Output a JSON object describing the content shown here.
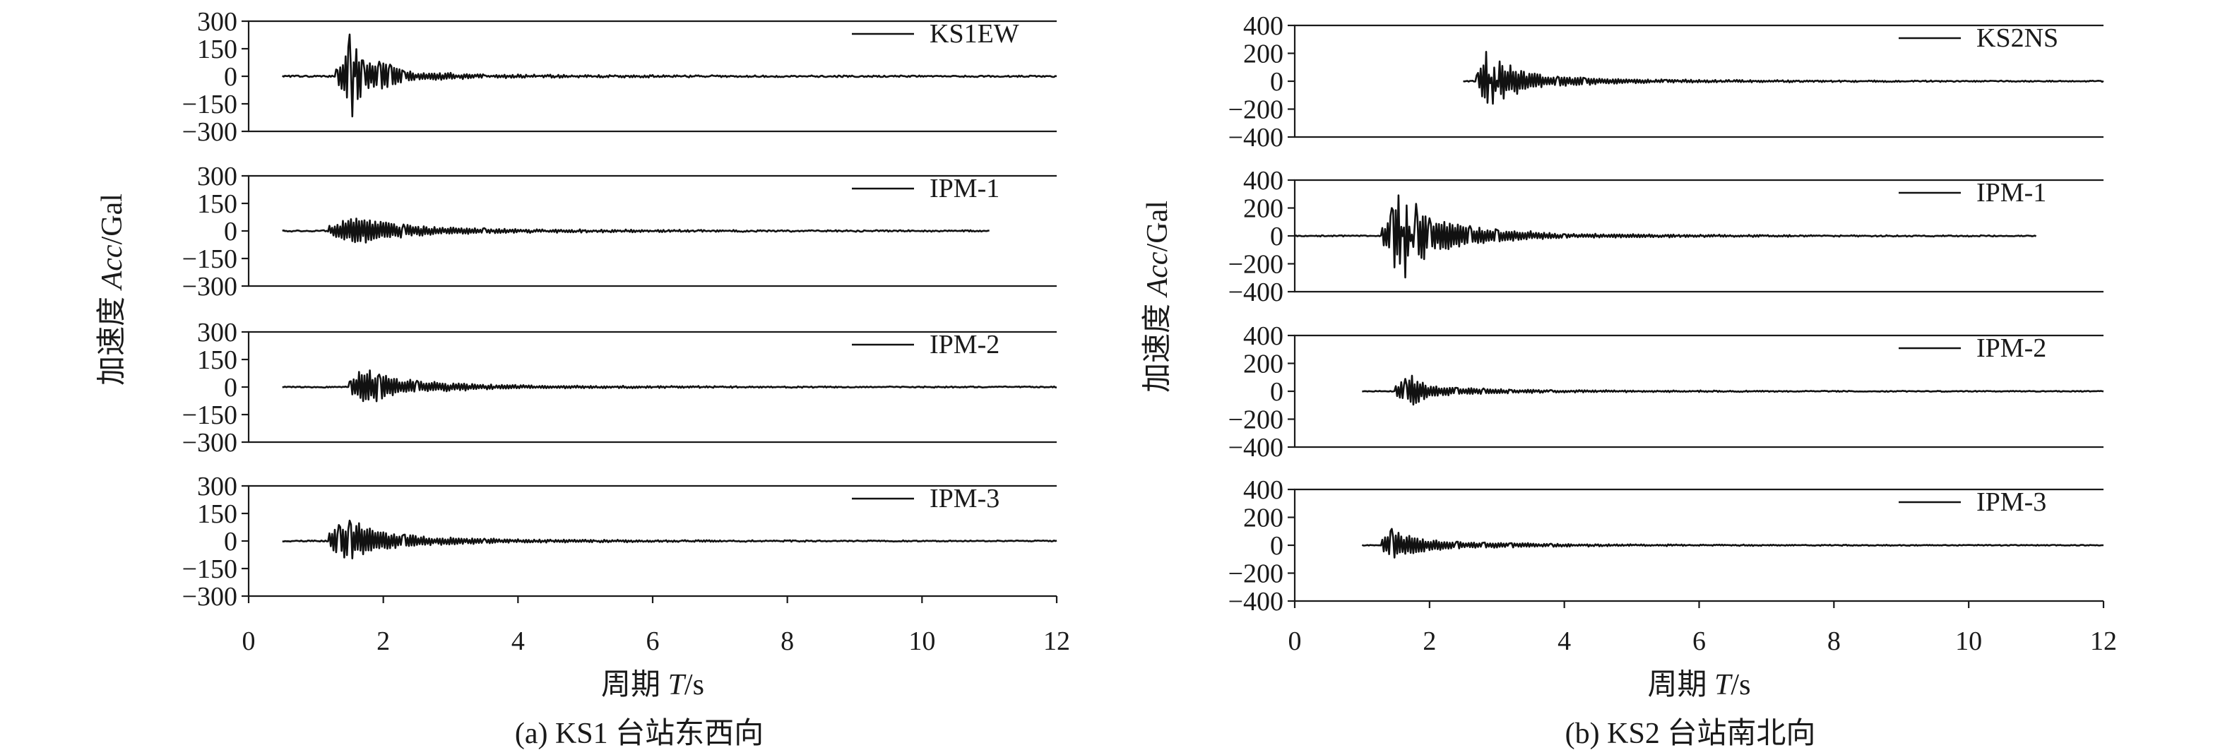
{
  "chart_data": [
    {
      "type": "line",
      "caption": "(a) KS1 台站东西向",
      "xlabel": {
        "pre": "周期 ",
        "italic": "T",
        "post": "/s"
      },
      "ylabel": {
        "pre": "加速度 ",
        "italic": "Acc",
        "post": "/Gal"
      },
      "xlim": [
        0,
        12
      ],
      "xticks": [
        0,
        2,
        4,
        6,
        8,
        10,
        12
      ],
      "ylim": [
        -300,
        300
      ],
      "yticks": [
        300,
        150,
        0,
        -150,
        -300
      ],
      "ytick_labels": [
        "300",
        "150",
        "0",
        "−150",
        "−300"
      ],
      "series": [
        {
          "name": "KS1EW",
          "t_start": 0.5,
          "t_end": 12,
          "noise": 4,
          "bursts": [
            {
              "t": [
                1.3,
                1.45,
                1.5,
                1.55,
                1.6,
                1.7,
                1.8,
                1.95,
                2.1,
                2.3,
                2.6,
                3.0,
                3.5
              ],
              "amp": [
                40,
                110,
                230,
                -220,
                150,
                90,
                70,
                80,
                60,
                30,
                20,
                15,
                8
              ]
            }
          ]
        },
        {
          "name": "IPM-1",
          "t_start": 0.5,
          "t_end": 11,
          "noise": 4,
          "bursts": [
            {
              "t": [
                1.2,
                1.4,
                1.6,
                1.8,
                2.0,
                2.3,
                2.6,
                3.0,
                3.5,
                4.0
              ],
              "amp": [
                25,
                55,
                70,
                60,
                45,
                35,
                25,
                18,
                12,
                8
              ]
            }
          ]
        },
        {
          "name": "IPM-2",
          "t_start": 0.5,
          "t_end": 12,
          "noise": 3,
          "bursts": [
            {
              "t": [
                1.5,
                1.65,
                1.8,
                1.95,
                2.2,
                2.5,
                2.8,
                3.2,
                3.6,
                4.2
              ],
              "amp": [
                30,
                80,
                90,
                70,
                45,
                35,
                25,
                18,
                12,
                8
              ]
            }
          ]
        },
        {
          "name": "IPM-3",
          "t_start": 0.5,
          "t_end": 12,
          "noise": 3,
          "bursts": [
            {
              "t": [
                1.2,
                1.35,
                1.5,
                1.65,
                1.8,
                2.0,
                2.3,
                2.6,
                3.0,
                3.5,
                4.0
              ],
              "amp": [
                40,
                90,
                110,
                95,
                70,
                45,
                35,
                25,
                18,
                12,
                8
              ]
            }
          ]
        }
      ]
    },
    {
      "type": "line",
      "caption": "(b) KS2 台站南北向",
      "xlabel": {
        "pre": "周期 ",
        "italic": "T",
        "post": "/s"
      },
      "ylabel": {
        "pre": "加速度 ",
        "italic": "Acc",
        "post": "/Gal"
      },
      "xlim": [
        0,
        12
      ],
      "xticks": [
        0,
        2,
        4,
        6,
        8,
        10,
        12
      ],
      "ylim": [
        -400,
        400
      ],
      "yticks": [
        400,
        200,
        0,
        -200,
        -400
      ],
      "ytick_labels": [
        "400",
        "200",
        "0",
        "−200",
        "−400"
      ],
      "series": [
        {
          "name": "KS2NS",
          "t_start": 2.5,
          "t_end": 12,
          "noise": 4,
          "bursts": [
            {
              "t": [
                2.7,
                2.85,
                2.95,
                3.05,
                3.2,
                3.4,
                3.6,
                3.9,
                4.3,
                4.8,
                5.5
              ],
              "amp": [
                40,
                210,
                -160,
                140,
                110,
                70,
                50,
                35,
                25,
                15,
                10
              ]
            }
          ]
        },
        {
          "name": "IPM-1",
          "t_start": 0,
          "t_end": 11,
          "noise": 4,
          "bursts": [
            {
              "t": [
                1.3,
                1.45,
                1.55,
                1.65,
                1.8,
                2.0,
                2.3,
                2.6,
                3.0,
                3.5,
                4.0
              ],
              "amp": [
                60,
                200,
                290,
                -300,
                230,
                130,
                90,
                70,
                45,
                30,
                15
              ]
            }
          ]
        },
        {
          "name": "IPM-2",
          "t_start": 1.0,
          "t_end": 12,
          "noise": 3,
          "bursts": [
            {
              "t": [
                1.5,
                1.65,
                1.75,
                1.9,
                2.1,
                2.4,
                2.8,
                3.2,
                3.8
              ],
              "amp": [
                40,
                90,
                110,
                60,
                35,
                25,
                18,
                12,
                8
              ]
            }
          ]
        },
        {
          "name": "IPM-3",
          "t_start": 1.0,
          "t_end": 12,
          "noise": 3,
          "bursts": [
            {
              "t": [
                1.3,
                1.45,
                1.55,
                1.7,
                1.9,
                2.1,
                2.4,
                2.8,
                3.2,
                3.8,
                4.5
              ],
              "amp": [
                40,
                120,
                90,
                65,
                45,
                35,
                25,
                20,
                15,
                10,
                6
              ]
            }
          ]
        }
      ]
    }
  ]
}
